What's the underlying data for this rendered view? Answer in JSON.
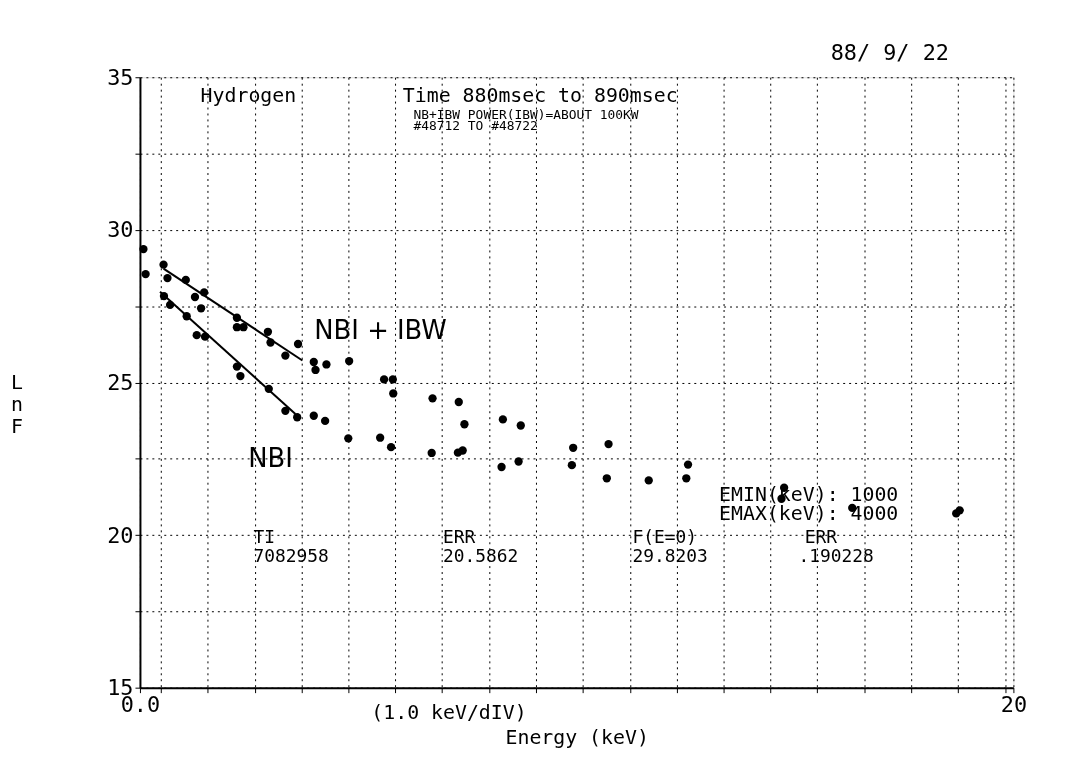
{
  "chart_data": {
    "type": "scatter",
    "xlabel": "Energy  (keV)",
    "ylabel": "Ln F",
    "xlim": [
      0,
      20
    ],
    "ylim": [
      15,
      35
    ],
    "xticks": [
      {
        "value": 0,
        "label": "0.0"
      },
      {
        "value": 0.48,
        "label": null
      },
      {
        "value": 1.55,
        "label": null
      },
      {
        "value": 2.63,
        "label": null
      },
      {
        "value": 3.7,
        "label": null
      },
      {
        "value": 4.77,
        "label": null
      },
      {
        "value": 5.85,
        "label": null
      },
      {
        "value": 6.92,
        "label": null
      },
      {
        "value": 8.0,
        "label": null
      },
      {
        "value": 9.07,
        "label": null
      },
      {
        "value": 10.14,
        "label": null
      },
      {
        "value": 11.22,
        "label": null
      },
      {
        "value": 12.29,
        "label": null
      },
      {
        "value": 13.36,
        "label": null
      },
      {
        "value": 14.44,
        "label": null
      },
      {
        "value": 15.51,
        "label": null
      },
      {
        "value": 16.58,
        "label": null
      },
      {
        "value": 17.66,
        "label": null
      },
      {
        "value": 18.73,
        "label": null
      },
      {
        "value": 19.81,
        "label": null
      },
      20
    ],
    "yticks": [
      15,
      {
        "value": 17.5,
        "label": null
      },
      20,
      {
        "value": 22.5,
        "label": null
      },
      25,
      {
        "value": 27.5,
        "label": null
      },
      30,
      {
        "value": 32.5,
        "label": null
      },
      35
    ],
    "grid": true,
    "line_style": "solid",
    "series": [
      {
        "type": "scatter",
        "marker": "circle",
        "color": "#000000",
        "x": [
          0.08,
          0.13,
          0.54,
          0.63,
          1.05,
          1.26,
          1.47,
          1.4,
          0.55,
          0.69,
          1.07,
          1.3,
          1.49,
          2.22,
          2.22,
          2.37,
          2.93,
          2.99,
          3.33,
          3.62,
          3.98,
          4.02,
          4.27,
          4.79,
          2.22,
          2.3,
          2.95,
          3.33,
          3.6,
          3.98,
          4.24,
          4.77,
          5.59,
          5.79,
          5.8,
          5.5,
          5.75,
          6.7,
          7.3,
          7.43,
          8.31,
          8.72,
          6.68,
          7.28,
          7.39,
          8.28,
          8.67,
          9.92,
          9.89,
          10.73,
          10.69,
          11.65,
          12.55,
          12.51,
          14.75,
          14.69,
          16.31,
          18.77,
          18.69
        ],
        "values": [
          29.37,
          28.55,
          28.86,
          28.42,
          28.36,
          27.8,
          27.95,
          27.43,
          27.83,
          27.54,
          27.17,
          26.55,
          26.5,
          27.12,
          26.81,
          26.81,
          26.66,
          26.31,
          25.88,
          26.26,
          25.67,
          25.41,
          25.59,
          25.7,
          25.52,
          25.21,
          24.79,
          24.07,
          23.86,
          23.91,
          23.74,
          23.17,
          25.1,
          25.1,
          24.64,
          23.19,
          22.88,
          24.48,
          24.36,
          23.63,
          23.79,
          23.59,
          22.69,
          22.7,
          22.77,
          22.23,
          22.41,
          22.86,
          22.29,
          22.98,
          21.86,
          21.79,
          22.31,
          21.86,
          21.55,
          21.19,
          20.89,
          20.81,
          20.71
        ]
      },
      {
        "type": "line",
        "name": "NBI + IBW",
        "color": "#000000",
        "x": [
          0.54,
          3.72
        ],
        "values": [
          28.73,
          25.72
        ]
      },
      {
        "type": "line",
        "name": "NBI",
        "color": "#000000",
        "x": [
          0.46,
          3.56
        ],
        "values": [
          27.97,
          23.97
        ]
      }
    ],
    "annotations": [
      "88/ 9/ 22",
      "Hydrogen",
      "Time 880msec to 890msec",
      "NB+IBW POWER(IBW)=ABOUT 100KW",
      "#48712 TO #48722",
      "EMIN(keV): 1000",
      "EMAX(keV): 4000",
      "TI",
      "7082958",
      "ERR",
      "20.5862",
      "F(E=0)",
      "29.8203",
      "ERR",
      ".190228",
      "(1.0 keV/dIV)"
    ]
  }
}
